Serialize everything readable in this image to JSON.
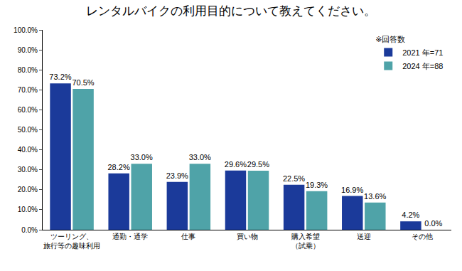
{
  "chart_data": {
    "type": "bar",
    "title": "レンタルバイクの利用目的について教えてください。",
    "categories": [
      "ツーリング、\n旅行等の趣味利用",
      "通勤・通学",
      "仕事",
      "買い物",
      "購入希望\n（試乗）",
      "送迎",
      "その他"
    ],
    "series": [
      {
        "name": "2021 年=71",
        "color": "#1b3a9a",
        "values": [
          73.2,
          28.2,
          23.9,
          29.6,
          22.5,
          16.9,
          4.2
        ],
        "value_labels": [
          "73.2%",
          "28.2%",
          "23.9%",
          "29.6%",
          "22.5%",
          "16.9%",
          "4.2%"
        ]
      },
      {
        "name": "2024 年=88",
        "color": "#4fa3a8",
        "values": [
          70.5,
          33.0,
          33.0,
          29.5,
          19.3,
          13.6,
          0.0
        ],
        "value_labels": [
          "70.5%",
          "33.0%",
          "33.0%",
          "29.5%",
          "19.3%",
          "13.6%",
          "0.0%"
        ]
      }
    ],
    "legend_title": "※回答数",
    "ylim": [
      0,
      100
    ],
    "yticks": [
      {
        "value": 0,
        "label": "0.0%"
      },
      {
        "value": 10,
        "label": "10.0%"
      },
      {
        "value": 20,
        "label": "20.0%"
      },
      {
        "value": 30,
        "label": "30.0%"
      },
      {
        "value": 40,
        "label": "40.0%"
      },
      {
        "value": 50,
        "label": "50.0%"
      },
      {
        "value": 60,
        "label": "60.0%"
      },
      {
        "value": 70,
        "label": "70.0%"
      },
      {
        "value": 80,
        "label": "80.0%"
      },
      {
        "value": 90,
        "label": "90.0%"
      },
      {
        "value": 100,
        "label": "100.0%"
      }
    ],
    "grid": false,
    "legend": "top-right",
    "data_labels": true
  }
}
